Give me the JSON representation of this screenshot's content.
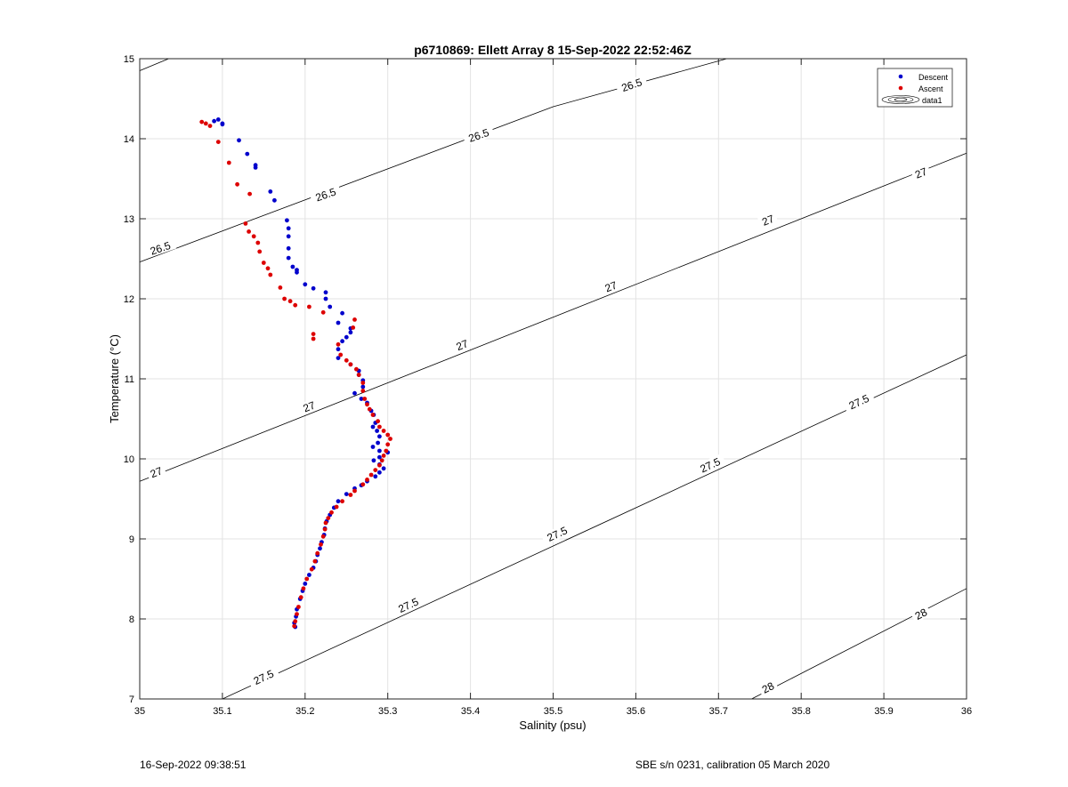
{
  "chart_data": {
    "type": "scatter",
    "title": "p6710869: Ellett Array 8 15-Sep-2022 22:52:46Z",
    "xlabel": "Salinity (psu)",
    "ylabel": "Temperature (°C)",
    "xlim": [
      35,
      36
    ],
    "ylim": [
      7,
      15
    ],
    "xticks": [
      "35",
      "35.1",
      "35.2",
      "35.3",
      "35.4",
      "35.5",
      "35.6",
      "35.7",
      "35.8",
      "35.9",
      "36"
    ],
    "yticks": [
      "7",
      "8",
      "9",
      "10",
      "11",
      "12",
      "13",
      "14",
      "15"
    ],
    "grid": true,
    "legend_position": "top-right",
    "legend": [
      "Descent",
      "Ascent",
      "data1"
    ],
    "colors": {
      "descent": "#0000cc",
      "ascent": "#dd0000",
      "contour": "#000000",
      "grid": "#e3e3e3"
    },
    "series": [
      {
        "name": "Descent",
        "points": [
          [
            35.095,
            14.24
          ],
          [
            35.09,
            14.22
          ],
          [
            35.1,
            14.19
          ],
          [
            35.1,
            14.18
          ],
          [
            35.12,
            13.98
          ],
          [
            35.13,
            13.81
          ],
          [
            35.14,
            13.67
          ],
          [
            35.14,
            13.64
          ],
          [
            35.158,
            13.34
          ],
          [
            35.163,
            13.23
          ],
          [
            35.178,
            12.98
          ],
          [
            35.18,
            12.88
          ],
          [
            35.18,
            12.78
          ],
          [
            35.18,
            12.63
          ],
          [
            35.18,
            12.51
          ],
          [
            35.185,
            12.4
          ],
          [
            35.19,
            12.36
          ],
          [
            35.19,
            12.33
          ],
          [
            35.2,
            12.18
          ],
          [
            35.21,
            12.13
          ],
          [
            35.225,
            12.08
          ],
          [
            35.225,
            12.0
          ],
          [
            35.23,
            11.9
          ],
          [
            35.245,
            11.82
          ],
          [
            35.24,
            11.7
          ],
          [
            35.255,
            11.63
          ],
          [
            35.255,
            11.58
          ],
          [
            35.25,
            11.52
          ],
          [
            35.245,
            11.47
          ],
          [
            35.24,
            11.37
          ],
          [
            35.24,
            11.26
          ],
          [
            35.255,
            11.18
          ],
          [
            35.265,
            11.1
          ],
          [
            35.265,
            11.05
          ],
          [
            35.27,
            10.98
          ],
          [
            35.27,
            10.9
          ],
          [
            35.26,
            10.82
          ],
          [
            35.268,
            10.75
          ],
          [
            35.275,
            10.7
          ],
          [
            35.28,
            10.6
          ],
          [
            35.283,
            10.55
          ],
          [
            35.285,
            10.45
          ],
          [
            35.282,
            10.4
          ],
          [
            35.287,
            10.35
          ],
          [
            35.29,
            10.28
          ],
          [
            35.288,
            10.2
          ],
          [
            35.282,
            10.15
          ],
          [
            35.29,
            10.1
          ],
          [
            35.3,
            10.08
          ],
          [
            35.29,
            10.02
          ],
          [
            35.283,
            9.98
          ],
          [
            35.29,
            9.93
          ],
          [
            35.295,
            9.88
          ],
          [
            35.29,
            9.83
          ],
          [
            35.285,
            9.78
          ],
          [
            35.275,
            9.72
          ],
          [
            35.268,
            9.67
          ],
          [
            35.26,
            9.63
          ],
          [
            35.25,
            9.56
          ],
          [
            35.24,
            9.47
          ],
          [
            35.235,
            9.39
          ],
          [
            35.23,
            9.3
          ],
          [
            35.226,
            9.22
          ],
          [
            35.224,
            9.13
          ],
          [
            35.223,
            9.05
          ],
          [
            35.22,
            8.96
          ],
          [
            35.218,
            8.88
          ],
          [
            35.215,
            8.8
          ],
          [
            35.213,
            8.72
          ],
          [
            35.21,
            8.64
          ],
          [
            35.205,
            8.55
          ],
          [
            35.2,
            8.44
          ],
          [
            35.197,
            8.35
          ],
          [
            35.194,
            8.25
          ],
          [
            35.19,
            8.12
          ],
          [
            35.189,
            8.03
          ],
          [
            35.187,
            7.95
          ],
          [
            35.188,
            7.9
          ]
        ]
      },
      {
        "name": "Ascent",
        "points": [
          [
            35.075,
            14.21
          ],
          [
            35.08,
            14.19
          ],
          [
            35.085,
            14.16
          ],
          [
            35.095,
            13.96
          ],
          [
            35.108,
            13.7
          ],
          [
            35.118,
            13.43
          ],
          [
            35.133,
            13.31
          ],
          [
            35.128,
            12.94
          ],
          [
            35.132,
            12.84
          ],
          [
            35.138,
            12.78
          ],
          [
            35.143,
            12.7
          ],
          [
            35.145,
            12.59
          ],
          [
            35.15,
            12.45
          ],
          [
            35.155,
            12.38
          ],
          [
            35.158,
            12.3
          ],
          [
            35.17,
            12.14
          ],
          [
            35.175,
            12.0
          ],
          [
            35.182,
            11.97
          ],
          [
            35.188,
            11.92
          ],
          [
            35.205,
            11.9
          ],
          [
            35.222,
            11.83
          ],
          [
            35.26,
            11.74
          ],
          [
            35.258,
            11.64
          ],
          [
            35.21,
            11.56
          ],
          [
            35.21,
            11.5
          ],
          [
            35.24,
            11.43
          ],
          [
            35.243,
            11.3
          ],
          [
            35.25,
            11.23
          ],
          [
            35.255,
            11.18
          ],
          [
            35.262,
            11.12
          ],
          [
            35.265,
            11.05
          ],
          [
            35.27,
            10.95
          ],
          [
            35.27,
            10.85
          ],
          [
            35.272,
            10.75
          ],
          [
            35.275,
            10.68
          ],
          [
            35.278,
            10.62
          ],
          [
            35.282,
            10.55
          ],
          [
            35.288,
            10.47
          ],
          [
            35.29,
            10.4
          ],
          [
            35.295,
            10.35
          ],
          [
            35.3,
            10.3
          ],
          [
            35.303,
            10.25
          ],
          [
            35.3,
            10.18
          ],
          [
            35.298,
            10.1
          ],
          [
            35.295,
            10.04
          ],
          [
            35.293,
            9.98
          ],
          [
            35.29,
            9.92
          ],
          [
            35.285,
            9.86
          ],
          [
            35.28,
            9.8
          ],
          [
            35.275,
            9.74
          ],
          [
            35.27,
            9.68
          ],
          [
            35.26,
            9.6
          ],
          [
            35.255,
            9.55
          ],
          [
            35.245,
            9.47
          ],
          [
            35.238,
            9.4
          ],
          [
            35.232,
            9.33
          ],
          [
            35.228,
            9.26
          ],
          [
            35.225,
            9.2
          ],
          [
            35.224,
            9.12
          ],
          [
            35.222,
            9.03
          ],
          [
            35.219,
            8.93
          ],
          [
            35.215,
            8.82
          ],
          [
            35.212,
            8.72
          ],
          [
            35.208,
            8.62
          ],
          [
            35.202,
            8.5
          ],
          [
            35.198,
            8.38
          ],
          [
            35.195,
            8.27
          ],
          [
            35.192,
            8.15
          ],
          [
            35.19,
            8.06
          ],
          [
            35.188,
            7.97
          ],
          [
            35.187,
            7.91
          ]
        ]
      }
    ],
    "contours": [
      {
        "level": "26.5",
        "line": [
          [
            35.0,
            12.46
          ],
          [
            35.5,
            14.4
          ],
          [
            35.71,
            15.0
          ]
        ],
        "extra_line": [
          [
            35.0,
            14.85
          ],
          [
            35.035,
            15.0
          ]
        ],
        "labels": [
          [
            35.025,
            12.63
          ],
          [
            35.225,
            13.3
          ],
          [
            35.41,
            14.04
          ],
          [
            35.595,
            14.67
          ]
        ]
      },
      {
        "level": "27",
        "line": [
          [
            35.0,
            9.72
          ],
          [
            36.0,
            13.82
          ]
        ],
        "labels": [
          [
            35.02,
            9.83
          ],
          [
            35.205,
            10.65
          ],
          [
            35.39,
            11.42
          ],
          [
            35.57,
            12.15
          ],
          [
            35.76,
            12.98
          ],
          [
            35.945,
            13.57
          ]
        ]
      },
      {
        "level": "27.5",
        "line": [
          [
            35.1,
            7.0
          ],
          [
            36.0,
            11.3
          ]
        ],
        "labels": [
          [
            35.15,
            7.27
          ],
          [
            35.325,
            8.17
          ],
          [
            35.505,
            9.06
          ],
          [
            35.69,
            9.92
          ],
          [
            35.87,
            10.71
          ]
        ]
      },
      {
        "level": "28",
        "line": [
          [
            35.74,
            7.0
          ],
          [
            36.0,
            8.38
          ]
        ],
        "labels": [
          [
            35.76,
            7.14
          ],
          [
            35.945,
            8.06
          ]
        ]
      }
    ]
  },
  "footer": {
    "left": "16-Sep-2022 09:38:51",
    "right": "SBE s/n 0231, calibration 05 March 2020"
  }
}
